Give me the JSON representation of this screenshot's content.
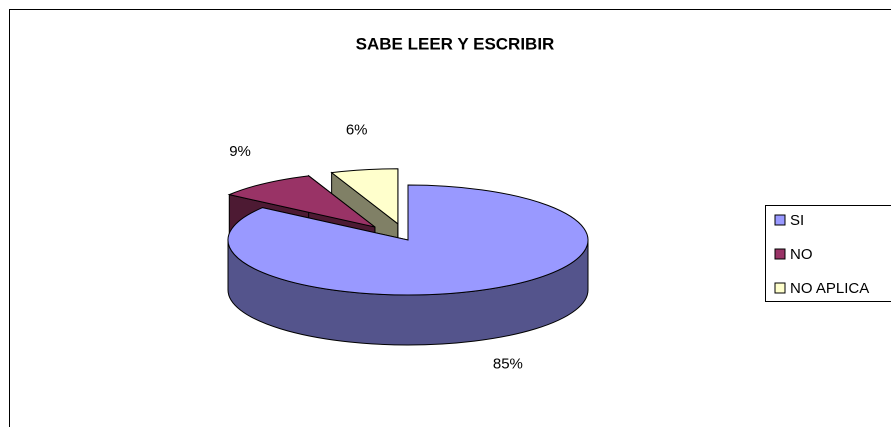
{
  "chart_data": {
    "type": "pie",
    "title": "SABE LEER Y ESCRIBIR",
    "categories": [
      "SI",
      "NO",
      "NO APLICA"
    ],
    "values": [
      85,
      9,
      6
    ],
    "value_labels": [
      "85%",
      "9%",
      "6%"
    ],
    "colors": [
      "#9999ff",
      "#993366",
      "#ffffcc"
    ],
    "legend": "right"
  }
}
